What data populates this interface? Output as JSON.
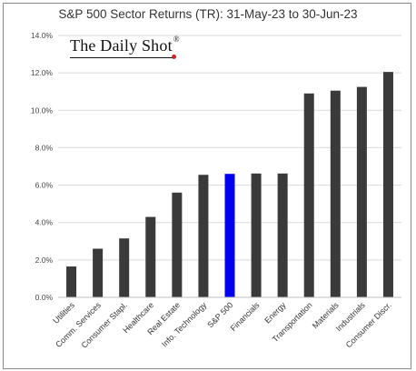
{
  "chart_data": {
    "type": "bar",
    "title": "S&P 500 Sector Returns (TR): 31-May-23 to 30-Jun-23",
    "watermark": "The Daily Shot",
    "watermark_mark": "®",
    "xlabel": "",
    "ylabel": "",
    "ylim": [
      0,
      14
    ],
    "yticks": [
      "0.0%",
      "2.0%",
      "4.0%",
      "6.0%",
      "8.0%",
      "10.0%",
      "12.0%",
      "14.0%"
    ],
    "grid": true,
    "legend": "none",
    "categories": [
      "Utilities",
      "Comm. Services",
      "Consumer Stapl.",
      "Healthcare",
      "Real Estate",
      "Info. Technology",
      "S&P 500",
      "Financials",
      "Energy",
      "Transportation",
      "Materials",
      "Industrials",
      "Consumer Discr."
    ],
    "values": [
      1.65,
      2.6,
      3.15,
      4.3,
      5.6,
      6.55,
      6.6,
      6.62,
      6.62,
      10.9,
      11.05,
      11.25,
      12.05
    ],
    "highlight_index": 6,
    "colors": {
      "bar": "#3a3a3a",
      "highlight": "#0000ee",
      "grid": "#d9d9d9",
      "axis": "#bfbfbf"
    }
  }
}
